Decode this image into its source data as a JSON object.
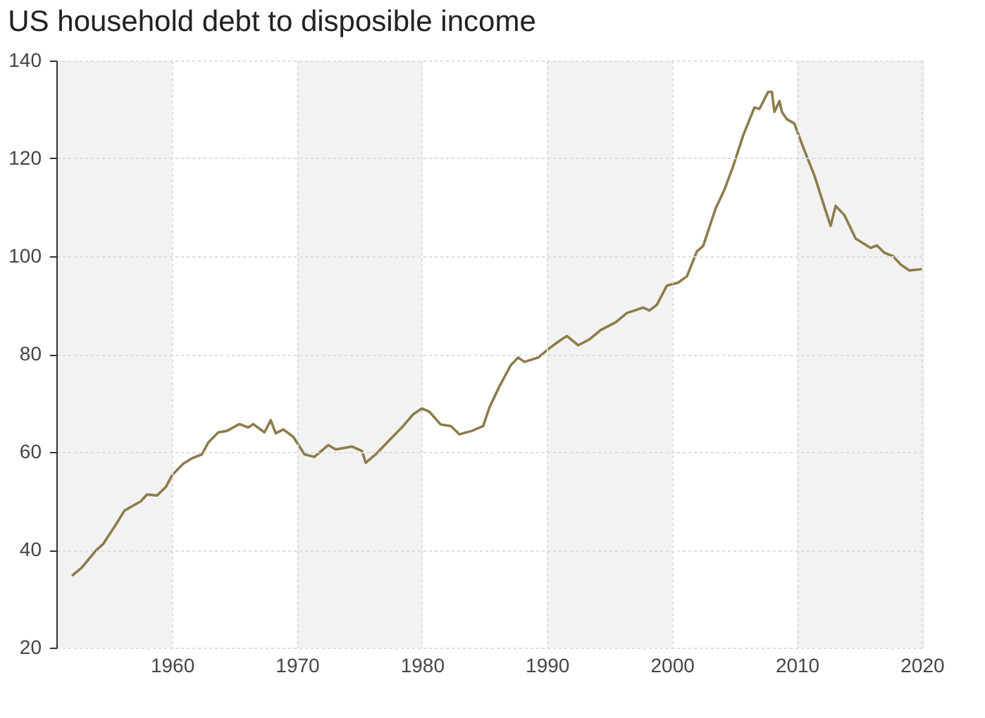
{
  "chart_data": {
    "type": "line",
    "title": "US household debt to disposible income",
    "x": [
      1952.0,
      1952.8,
      1953.9,
      1954.5,
      1955.6,
      1956.2,
      1957.5,
      1958.0,
      1958.8,
      1959.5,
      1960.0,
      1960.9,
      1961.6,
      1962.4,
      1962.9,
      1963.7,
      1964.4,
      1965.4,
      1966.1,
      1966.5,
      1967.4,
      1967.9,
      1968.3,
      1968.9,
      1969.7,
      1970.6,
      1971.4,
      1972.5,
      1973.1,
      1974.4,
      1975.2,
      1975.5,
      1976.3,
      1977.4,
      1978.5,
      1979.3,
      1980.0,
      1980.6,
      1981.5,
      1982.3,
      1983.0,
      1984.0,
      1984.9,
      1985.4,
      1986.2,
      1987.1,
      1987.7,
      1988.2,
      1989.3,
      1990.1,
      1991.0,
      1991.6,
      1992.5,
      1993.4,
      1994.3,
      1995.5,
      1996.4,
      1997.7,
      1998.2,
      1998.8,
      1999.6,
      2000.5,
      2001.2,
      2002.0,
      2002.5,
      2003.5,
      2004.2,
      2004.9,
      2005.7,
      2006.6,
      2007.0,
      2007.7,
      2008.0,
      2008.2,
      2008.6,
      2008.8,
      2009.2,
      2009.8,
      2010.5,
      2011.4,
      2012.3,
      2012.7,
      2013.1,
      2013.8,
      2014.7,
      2015.9,
      2016.4,
      2017.0,
      2017.7,
      2018.3,
      2019.0,
      2019.8,
      2020.0
    ],
    "series": [
      {
        "color": "#8b7d4b",
        "values": [
          34.7,
          36.4,
          39.8,
          41.2,
          45.5,
          48.0,
          49.9,
          51.3,
          51.1,
          52.8,
          55.2,
          57.6,
          58.7,
          59.5,
          61.9,
          64.0,
          64.3,
          65.7,
          65.0,
          65.7,
          64.0,
          66.5,
          63.8,
          64.6,
          63.1,
          59.5,
          59.0,
          61.4,
          60.5,
          61.1,
          60.2,
          57.8,
          59.5,
          62.4,
          65.3,
          67.7,
          68.9,
          68.2,
          65.6,
          65.3,
          63.6,
          64.3,
          65.3,
          69.1,
          73.4,
          77.7,
          79.3,
          78.4,
          79.3,
          81.0,
          82.7,
          83.7,
          81.8,
          83.0,
          84.9,
          86.5,
          88.4,
          89.5,
          88.9,
          90.1,
          94.0,
          94.6,
          95.9,
          101.0,
          102.1,
          109.8,
          113.6,
          118.4,
          124.7,
          130.4,
          130.1,
          133.6,
          133.6,
          129.5,
          131.7,
          129.5,
          128.0,
          127.1,
          122.3,
          116.5,
          109.3,
          106.2,
          110.3,
          108.4,
          103.6,
          101.7,
          102.2,
          100.7,
          100.0,
          98.3,
          97.1,
          97.3,
          97.4
        ]
      }
    ],
    "xlim": [
      1950.75,
      2020.2
    ],
    "xticks": [
      1960,
      1970,
      1980,
      1990,
      2000,
      2010,
      2020
    ],
    "ylim": [
      20,
      140
    ],
    "yticks": [
      20,
      40,
      60,
      80,
      100,
      120,
      140
    ],
    "bands": [
      {
        "axis": "x",
        "from": 1950.75,
        "to": 1960,
        "color": "#f2f2f2"
      },
      {
        "axis": "x",
        "from": 1970,
        "to": 1980,
        "color": "#f2f2f2"
      },
      {
        "axis": "x",
        "from": 1990,
        "to": 2000,
        "color": "#f2f2f2"
      },
      {
        "axis": "x",
        "from": 2010,
        "to": 2020.2,
        "color": "#f2f2f2"
      }
    ],
    "grid": true,
    "marker": "none",
    "line_style": "solid"
  }
}
